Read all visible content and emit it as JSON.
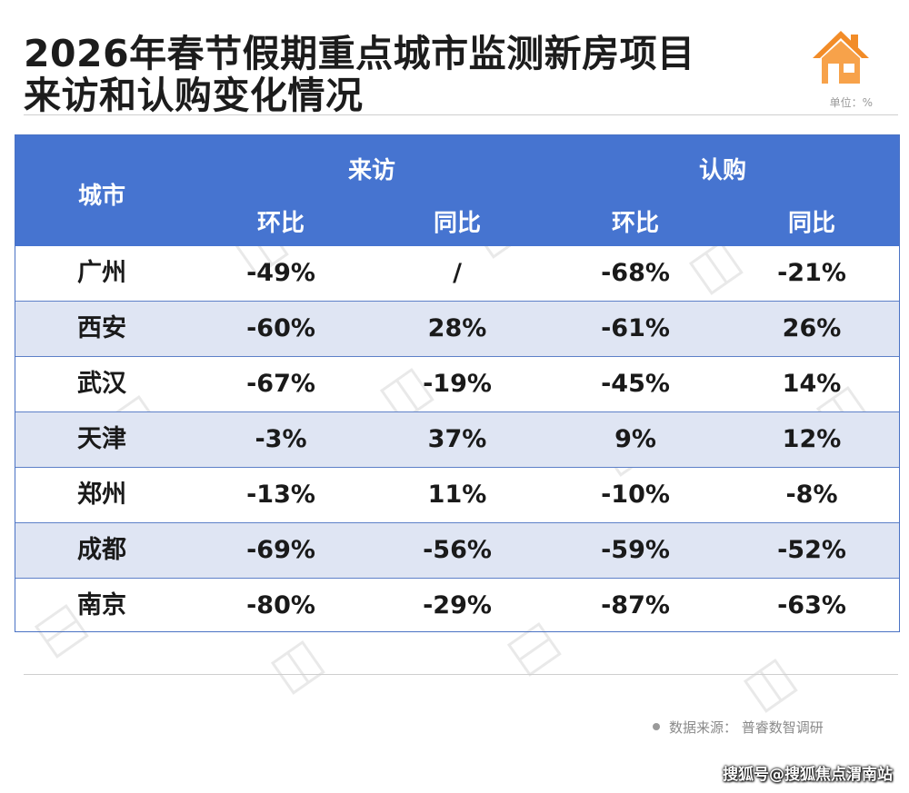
{
  "title": {
    "line1": "2026年春节假期重点城市监测新房项目",
    "line2": "来访和认购变化情况"
  },
  "unit": "单位：%",
  "logo_icon": "house-icon",
  "colors": {
    "header_bg": "#4674d0",
    "alt_row_bg": "#dfe5f3",
    "logo_orange": "#f28c28"
  },
  "table": {
    "headers": {
      "city": "城市",
      "visit_group": "来访",
      "purchase_group": "认购",
      "visit_mom": "环比",
      "visit_yoy": "同比",
      "purchase_mom": "环比",
      "purchase_yoy": "同比"
    },
    "rows": [
      {
        "city": "广州",
        "visit_mom": "-49%",
        "visit_yoy": "/",
        "purchase_mom": "-68%",
        "purchase_yoy": "-21%"
      },
      {
        "city": "西安",
        "visit_mom": "-60%",
        "visit_yoy": "28%",
        "purchase_mom": "-61%",
        "purchase_yoy": "26%"
      },
      {
        "city": "武汉",
        "visit_mom": "-67%",
        "visit_yoy": "-19%",
        "purchase_mom": "-45%",
        "purchase_yoy": "14%"
      },
      {
        "city": "天津",
        "visit_mom": "-3%",
        "visit_yoy": "37%",
        "purchase_mom": "9%",
        "purchase_yoy": "12%"
      },
      {
        "city": "郑州",
        "visit_mom": "-13%",
        "visit_yoy": "11%",
        "purchase_mom": "-10%",
        "purchase_yoy": "-8%"
      },
      {
        "city": "成都",
        "visit_mom": "-69%",
        "visit_yoy": "-56%",
        "purchase_mom": "-59%",
        "purchase_yoy": "-52%"
      },
      {
        "city": "南京",
        "visit_mom": "-80%",
        "visit_yoy": "-29%",
        "purchase_mom": "-87%",
        "purchase_yoy": "-63%"
      }
    ]
  },
  "source": "数据来源：  普睿数智调研",
  "credit": "搜狐号@搜狐焦点渭南站"
}
